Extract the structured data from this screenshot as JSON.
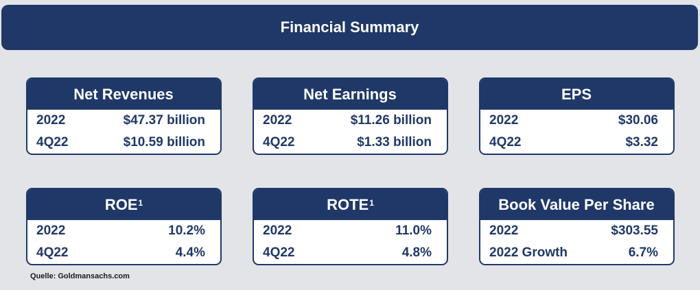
{
  "title": "Financial Summary",
  "cards": [
    {
      "title": "Net Revenues",
      "sup": "",
      "rows": [
        {
          "label": "2022",
          "value": "$47.37 billion"
        },
        {
          "label": "4Q22",
          "value": "$10.59 billion"
        }
      ]
    },
    {
      "title": "Net Earnings",
      "sup": "",
      "rows": [
        {
          "label": "2022",
          "value": "$11.26 billion"
        },
        {
          "label": "4Q22",
          "value": "$1.33 billion"
        }
      ]
    },
    {
      "title": "EPS",
      "sup": "",
      "rows": [
        {
          "label": "2022",
          "value": "$30.06"
        },
        {
          "label": "4Q22",
          "value": "$3.32"
        }
      ]
    },
    {
      "title": "ROE",
      "sup": "1",
      "rows": [
        {
          "label": "2022",
          "value": "10.2%"
        },
        {
          "label": "4Q22",
          "value": "4.4%"
        }
      ]
    },
    {
      "title": "ROTE",
      "sup": "1",
      "rows": [
        {
          "label": "2022",
          "value": "11.0%"
        },
        {
          "label": "4Q22",
          "value": "4.8%"
        }
      ]
    },
    {
      "title": "Book Value Per Share",
      "sup": "",
      "rows": [
        {
          "label": "2022",
          "value": "$303.55"
        },
        {
          "label": "2022 Growth",
          "value": "6.7%"
        }
      ]
    }
  ],
  "source": "Quelle: Goldmansachs.com",
  "colors": {
    "navy": "#1f3868",
    "background": "#e3e4e7"
  }
}
